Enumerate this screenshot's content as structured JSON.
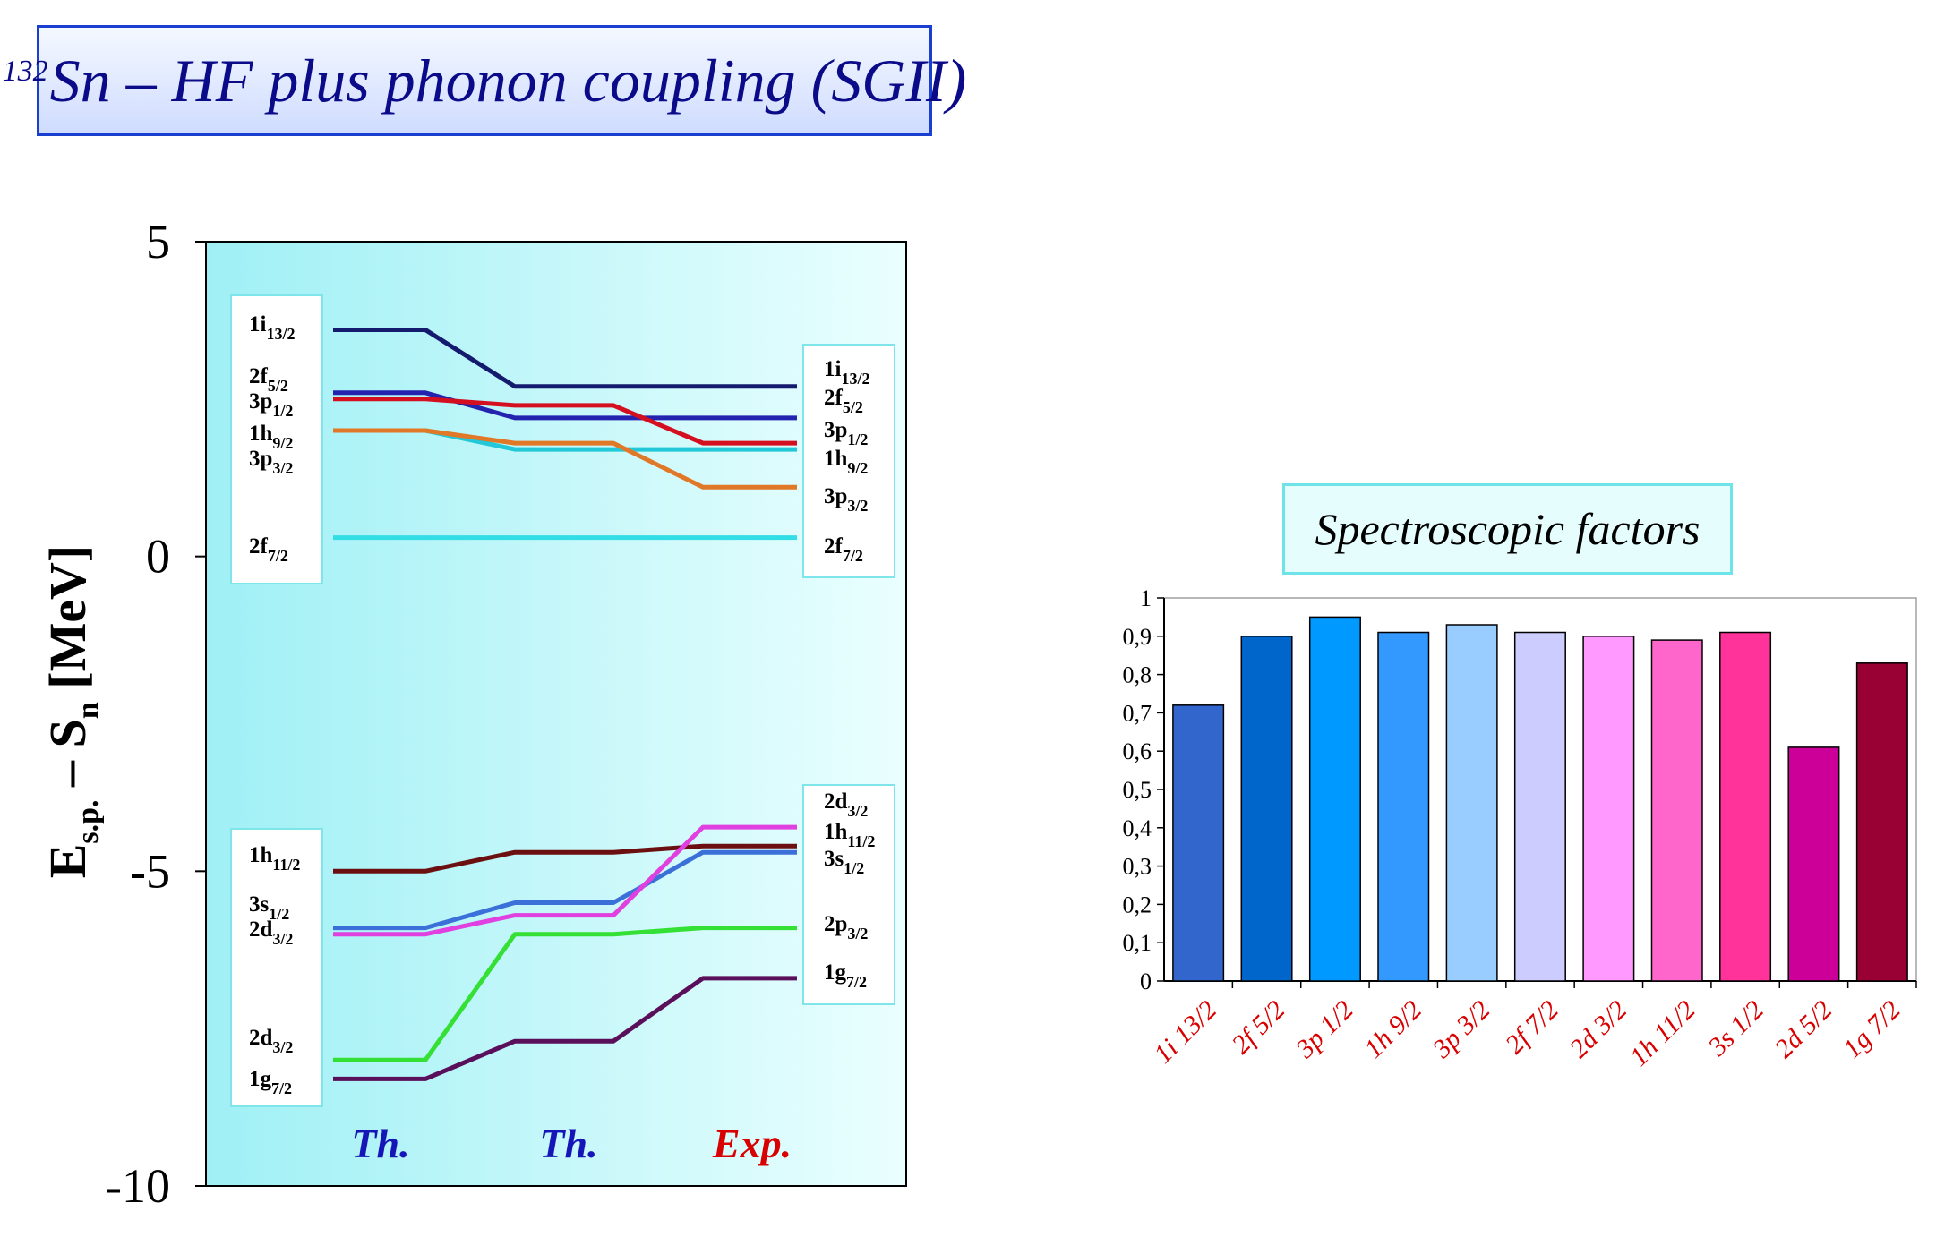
{
  "title": {
    "mass": "132",
    "text": "Sn – HF plus phonon coupling (SGII)"
  },
  "chart_data": [
    {
      "type": "line",
      "ylabel": "E",
      "ylabel_sub": "s.p.",
      "ylabel_tail": " – S",
      "ylabel_sub2": "n",
      "ylabel_unit": " [MeV]",
      "ylim": [
        -10,
        5
      ],
      "yticks": [
        "5",
        "0",
        "-5",
        "-10"
      ],
      "columns": [
        {
          "label": "Th.",
          "color": "#1515b8"
        },
        {
          "label": "Th.",
          "color": "#1515b8"
        },
        {
          "label": "Exp.",
          "color": "#d80000"
        }
      ],
      "left_labels": [
        {
          "base": "1i",
          "sub": "13/2"
        },
        {
          "base": "2f",
          "sub": "5/2"
        },
        {
          "base": "3p",
          "sub": "1/2"
        },
        {
          "base": "1h",
          "sub": "9/2"
        },
        {
          "base": "3p",
          "sub": "3/2"
        },
        {
          "base": "2f",
          "sub": "7/2"
        },
        {
          "base": "1h",
          "sub": "11/2"
        },
        {
          "base": "3s",
          "sub": "1/2"
        },
        {
          "base": "2d",
          "sub": "3/2"
        },
        {
          "base": "2d",
          "sub": "3/2"
        },
        {
          "base": "1g",
          "sub": "7/2"
        }
      ],
      "right_labels": [
        {
          "base": "1i",
          "sub": "13/2"
        },
        {
          "base": "2f",
          "sub": "5/2"
        },
        {
          "base": "3p",
          "sub": "1/2"
        },
        {
          "base": "1h",
          "sub": "9/2"
        },
        {
          "base": "3p",
          "sub": "3/2"
        },
        {
          "base": "2f",
          "sub": "7/2"
        },
        {
          "base": "2d",
          "sub": "3/2"
        },
        {
          "base": "1h",
          "sub": "11/2"
        },
        {
          "base": "3s",
          "sub": "1/2"
        },
        {
          "base": "2p",
          "sub": "3/2"
        },
        {
          "base": "1g",
          "sub": "7/2"
        }
      ],
      "series": [
        {
          "values": [
            3.6,
            2.7,
            2.7
          ],
          "color": "#141a6e"
        },
        {
          "values": [
            2.6,
            2.2,
            2.2
          ],
          "color": "#2323b0"
        },
        {
          "values": [
            2.5,
            2.4,
            1.8
          ],
          "color": "#d41020"
        },
        {
          "values": [
            2.0,
            1.7,
            1.7
          ],
          "color": "#22c8d8"
        },
        {
          "values": [
            2.0,
            1.8,
            1.1
          ],
          "color": "#e07828"
        },
        {
          "values": [
            0.3,
            0.3,
            0.3
          ],
          "color": "#33dde5"
        },
        {
          "values": [
            -5.0,
            -4.7,
            -4.6
          ],
          "color": "#6b0f10"
        },
        {
          "values": [
            -5.9,
            -5.5,
            -4.7
          ],
          "color": "#3a70d8"
        },
        {
          "values": [
            -6.0,
            -5.7,
            -4.3
          ],
          "color": "#e040e0"
        },
        {
          "values": [
            -8.0,
            -6.0,
            -5.9
          ],
          "color": "#33e033"
        },
        {
          "values": [
            -8.3,
            -7.7,
            -6.7
          ],
          "color": "#5a0f5a"
        }
      ]
    },
    {
      "type": "bar",
      "title": "Spectroscopic factors",
      "ylim": [
        0,
        1
      ],
      "yticks": [
        "0",
        "0,1",
        "0,2",
        "0,3",
        "0,4",
        "0,5",
        "0,6",
        "0,7",
        "0,8",
        "0,9",
        "1"
      ],
      "categories": [
        "1i 13/2",
        "2f 5/2",
        "3p 1/2",
        "1h 9/2",
        "3p 3/2",
        "2f 7/2",
        "2d 3/2",
        "1h 11/2",
        "3s 1/2",
        "2d 5/2",
        "1g 7/2"
      ],
      "values": [
        0.72,
        0.9,
        0.95,
        0.91,
        0.93,
        0.91,
        0.9,
        0.89,
        0.91,
        0.61,
        0.83
      ],
      "colors": [
        "#3366cc",
        "#0066cc",
        "#0099ff",
        "#3399ff",
        "#99ccff",
        "#ccccff",
        "#ff99ff",
        "#ff66cc",
        "#ff3399",
        "#cc0099",
        "#990033"
      ],
      "label_color": "#d80000"
    }
  ]
}
